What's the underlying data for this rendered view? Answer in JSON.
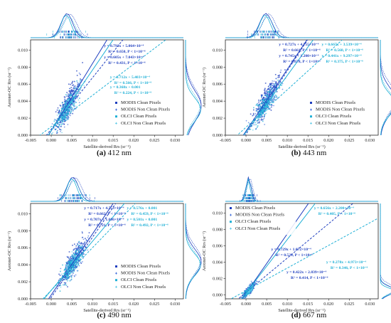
{
  "figure": {
    "colors": {
      "modis_clean": "#1f3fbf",
      "modis_non_clean": "#2d5fd8",
      "olci_clean": "#1fb0d6",
      "olci_non_clean": "#57c8e6",
      "frame": "#222222"
    },
    "legend_entries": [
      "MODIS Clean Pixels",
      "MODIS Non Clean Pixels",
      "OLCI Clean Pixels",
      "OLCI Non Clean Pixels"
    ]
  },
  "chart_data": [
    {
      "type": "scatter",
      "caption_letter": "(a)",
      "caption_text": " 412 nm",
      "xlabel": "Satellite-derived Rrs (sr⁻¹)",
      "ylabel": "Aeronet-OC Rrs (sr⁻¹)",
      "xlim": [
        -0.005,
        0.032
      ],
      "ylim": [
        0,
        0.0112
      ],
      "xticks": [
        "-0.005",
        "0.000",
        "0.005",
        "0.010",
        "0.015",
        "0.020",
        "0.025",
        "0.030"
      ],
      "yticks": [
        "0.000",
        "0.002",
        "0.004",
        "0.006",
        "0.008",
        "0.010"
      ],
      "legend_placement": "bottom-right",
      "series": [
        {
          "name": "MODIS Clean Pixels",
          "cx": 0.0038,
          "cy": 0.0034,
          "sx": 0.0014,
          "sy": 0.0018,
          "n": 260
        },
        {
          "name": "MODIS Non Clean Pixels",
          "cx": 0.0045,
          "cy": 0.0036,
          "sx": 0.0016,
          "sy": 0.0019,
          "n": 140
        },
        {
          "name": "OLCI Clean Pixels",
          "cx": 0.0036,
          "cy": 0.003,
          "sx": 0.0012,
          "sy": 0.0014,
          "n": 180
        },
        {
          "name": "OLCI Non Clean Pixels",
          "cx": 0.0043,
          "cy": 0.0033,
          "sx": 0.0014,
          "sy": 0.0015,
          "n": 110
        }
      ],
      "fits": [
        {
          "series": "MODIS Clean Pixels",
          "line1": "y = 0.792x + 5.064×10⁻⁴",
          "line2": "R² = 0.650, P < 1×10⁻⁶",
          "slope": 0.792,
          "intercept": 0.0005064,
          "style": "solid",
          "color": "#1f3fbf",
          "label_at": "top-center"
        },
        {
          "series": "MODIS Non Clean Pixels",
          "line1": "y = 0.605x + 7.043×10⁻⁴",
          "line2": "R² = 0.431, P < 1×10⁻⁶",
          "slope": 0.605,
          "intercept": 0.0007043,
          "style": "dashed",
          "color": "#1f3fbf",
          "label_at": "mid-center"
        },
        {
          "series": "OLCI Clean Pixels",
          "line1": "y = 0.712x + 5.403×10⁻⁴",
          "line2": "R² = 0.566, P < 1×10⁻⁶",
          "slope": 0.712,
          "intercept": 0.0005403,
          "style": "solid",
          "color": "#1fb0d6",
          "label_at": "right-mid"
        },
        {
          "series": "OLCI Non Clean Pixels",
          "line1": "y = 0.368x + 0.001",
          "line2": "R² = 0.224, P < 1×10⁻⁶",
          "slope": 0.368,
          "intercept": 0.001,
          "style": "dashed",
          "color": "#1fb0d6",
          "label_at": "right-low"
        }
      ]
    },
    {
      "type": "scatter",
      "caption_letter": "(b)",
      "caption_text": " 443 nm",
      "xlabel": "Satellite-derived Rrs (sr⁻¹)",
      "ylabel": "Aeronet-OC Rrs (sr⁻¹)",
      "xlim": [
        -0.005,
        0.032
      ],
      "ylim": [
        0,
        0.0112
      ],
      "xticks": [
        "-0.005",
        "0.000",
        "0.005",
        "0.010",
        "0.015",
        "0.020",
        "0.025",
        "0.030"
      ],
      "yticks": [
        "0.000",
        "0.002",
        "0.004",
        "0.006",
        "0.008",
        "0.010"
      ],
      "legend_placement": "bottom-right",
      "series": [
        {
          "name": "MODIS Clean Pixels",
          "cx": 0.0048,
          "cy": 0.004,
          "sx": 0.0015,
          "sy": 0.0016,
          "n": 260
        },
        {
          "name": "MODIS Non Clean Pixels",
          "cx": 0.0055,
          "cy": 0.0044,
          "sx": 0.0016,
          "sy": 0.0017,
          "n": 140
        },
        {
          "name": "OLCI Clean Pixels",
          "cx": 0.0046,
          "cy": 0.0036,
          "sx": 0.0013,
          "sy": 0.0013,
          "n": 180
        },
        {
          "name": "OLCI Non Clean Pixels",
          "cx": 0.0052,
          "cy": 0.0038,
          "sx": 0.0014,
          "sy": 0.0014,
          "n": 110
        }
      ],
      "fits": [
        {
          "series": "MODIS Clean Pixels",
          "line1": "y = 0.727x + 4.755×10⁻⁴",
          "line2": "R² = 0.661, P < 1×10⁻⁶",
          "slope": 0.727,
          "intercept": 0.0004755,
          "style": "solid",
          "color": "#1f3fbf",
          "label_at": "top-left"
        },
        {
          "series": "MODIS Non Clean Pixels",
          "line1": "y = 0.745x + 1.200×10⁻⁴",
          "line2": "R² = 0.678, P < 1×10⁻⁶",
          "slope": 0.745,
          "intercept": 0.00012,
          "style": "dashed",
          "color": "#1f3fbf",
          "label_at": "mid-left"
        },
        {
          "series": "OLCI Clean Pixels",
          "line1": "y = 0.667x + 3.539×10⁻⁴",
          "line2": "R² = 0.568, P < 1×10⁻⁶",
          "slope": 0.667,
          "intercept": 0.0003539,
          "style": "solid",
          "color": "#1fb0d6",
          "label_at": "top-right"
        },
        {
          "series": "OLCI Non Clean Pixels",
          "line1": "y = 0.441x + 9.297×10⁻⁴",
          "line2": "R² = 0.375, P < 1×10⁻⁶",
          "slope": 0.441,
          "intercept": 0.0009297,
          "style": "dashed",
          "color": "#1fb0d6",
          "label_at": "mid-right"
        }
      ]
    },
    {
      "type": "scatter",
      "caption_letter": "(c)",
      "caption_text": " 490 nm",
      "xlabel": "Satellite-derived Rrs (sr⁻¹)",
      "ylabel": "Aeronet-OC Rrs (sr⁻¹)",
      "xlim": [
        -0.005,
        0.032
      ],
      "ylim": [
        0,
        0.0112
      ],
      "xticks": [
        "-0.005",
        "0.000",
        "0.005",
        "0.010",
        "0.015",
        "0.020",
        "0.025",
        "0.030"
      ],
      "yticks": [
        "0.000",
        "0.002",
        "0.004",
        "0.006",
        "0.008",
        "0.010"
      ],
      "legend_placement": "bottom-right",
      "series": [
        {
          "name": "MODIS Clean Pixels",
          "cx": 0.0052,
          "cy": 0.0043,
          "sx": 0.0014,
          "sy": 0.0015,
          "n": 260
        },
        {
          "name": "MODIS Non Clean Pixels",
          "cx": 0.0058,
          "cy": 0.0046,
          "sx": 0.0015,
          "sy": 0.0016,
          "n": 140
        },
        {
          "name": "OLCI Clean Pixels",
          "cx": 0.005,
          "cy": 0.004,
          "sx": 0.0012,
          "sy": 0.0013,
          "n": 180
        },
        {
          "name": "OLCI Non Clean Pixels",
          "cx": 0.0055,
          "cy": 0.0042,
          "sx": 0.0013,
          "sy": 0.0014,
          "n": 110
        }
      ],
      "fits": [
        {
          "series": "MODIS Clean Pixels",
          "line1": "y = 0.717x + 4.553×10⁻⁴",
          "line2": "R² = 0.662, P < 1×10⁻⁶",
          "slope": 0.717,
          "intercept": 0.0004553,
          "style": "solid",
          "color": "#1f3fbf",
          "label_at": "top-left"
        },
        {
          "series": "MODIS Non Clean Pixels",
          "line1": "y = 0.707x + 1.686×10⁻⁴",
          "line2": "R² = 0.721, P < 1×10⁻⁶",
          "slope": 0.707,
          "intercept": 0.0001686,
          "style": "dashed",
          "color": "#1f3fbf",
          "label_at": "mid-left"
        },
        {
          "series": "OLCI Clean Pixels",
          "line1": "y = 0.576x + 0.001",
          "line2": "R² = 0.459, P < 1×10⁻⁶",
          "slope": 0.576,
          "intercept": 0.001,
          "style": "solid",
          "color": "#1fb0d6",
          "label_at": "top-right"
        },
        {
          "series": "OLCI Non Clean Pixels",
          "line1": "y = 0.501x + 0.001",
          "line2": "R² = 0.492, P < 1×10⁻⁶",
          "slope": 0.501,
          "intercept": 0.001,
          "style": "dashed",
          "color": "#1fb0d6",
          "label_at": "mid-right"
        }
      ]
    },
    {
      "type": "scatter",
      "caption_letter": "(d)",
      "caption_text": " 667 nm",
      "xlabel": "Satellite-derived Rrs (sr⁻¹)",
      "ylabel": "Aeronet-OC Rrs (sr⁻¹)",
      "xlim": [
        -0.005,
        0.032
      ],
      "ylim": [
        -0.0005,
        0.0112
      ],
      "xticks": [
        "-0.005",
        "0.000",
        "0.005",
        "0.010",
        "0.015",
        "0.020",
        "0.025",
        "0.030"
      ],
      "yticks": [
        "0.000",
        "0.002",
        "0.004",
        "0.006",
        "0.008",
        "0.010"
      ],
      "legend_placement": "top-left",
      "series": [
        {
          "name": "MODIS Clean Pixels",
          "cx": 0.0006,
          "cy": 0.0005,
          "sx": 0.0006,
          "sy": 0.0005,
          "n": 180
        },
        {
          "name": "MODIS Non Clean Pixels",
          "cx": 0.0009,
          "cy": 0.0007,
          "sx": 0.0007,
          "sy": 0.0006,
          "n": 100
        },
        {
          "name": "OLCI Clean Pixels",
          "cx": 0.0005,
          "cy": 0.0004,
          "sx": 0.0005,
          "sy": 0.0004,
          "n": 140
        },
        {
          "name": "OLCI Non Clean Pixels",
          "cx": 0.0008,
          "cy": 0.0006,
          "sx": 0.0006,
          "sy": 0.0005,
          "n": 90
        }
      ],
      "fits": [
        {
          "series": "MODIS Clean Pixels",
          "line1": "y = 0.729x + 1.872×10⁻⁴",
          "line2": "R² = 0.529, P < 1×10⁻⁶",
          "slope": 0.729,
          "intercept": 0.0001872,
          "style": "solid",
          "color": "#1f3fbf",
          "label_at": "mid-left"
        },
        {
          "series": "MODIS Non Clean Pixels",
          "line1": "y = 0.422x + 2.839×10⁻⁴",
          "line2": "R² = 0.414, P < 1×10⁻⁶",
          "slope": 0.422,
          "intercept": 0.0002839,
          "style": "dashed",
          "color": "#1f3fbf",
          "label_at": "bottom-center"
        },
        {
          "series": "OLCI Clean Pixels",
          "line1": "y = 0.656x + 2.200×10⁻⁴",
          "line2": "R² = 0.405, P < 1×10⁻⁶",
          "slope": 0.656,
          "intercept": 0.00022,
          "style": "solid",
          "color": "#1fb0d6",
          "label_at": "top-right"
        },
        {
          "series": "OLCI Non Clean Pixels",
          "line1": "y = 0.278x + 4.973×10⁻⁴",
          "line2": "R² = 0.346, P < 1×10⁻⁶",
          "slope": 0.278,
          "intercept": 0.0004973,
          "style": "dashed",
          "color": "#1fb0d6",
          "label_at": "right-low"
        }
      ]
    }
  ]
}
